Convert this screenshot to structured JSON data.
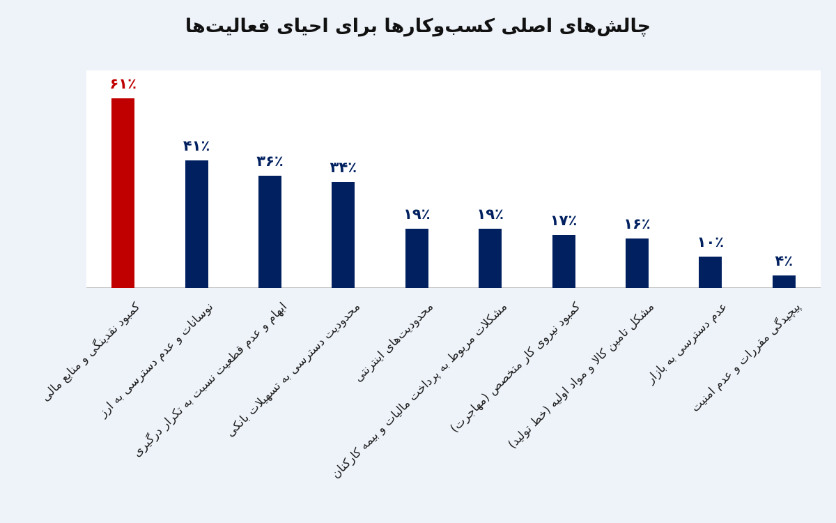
{
  "chart_data": {
    "type": "bar",
    "title": "چالش‌های اصلی کسب‌وکارها برای احیای فعالیت‌ها",
    "categories": [
      "کمبود نقدینگی و منابع مالی",
      "نوسانات و عدم دسترسی به ارز",
      "ابهام و عدم قطعیت نسبت به تکرار درگیری",
      "محدودیت دسترسی به تسهیلات بانکی",
      "محدودیت‌های اینترنتی",
      "مشکلات مربوط به پرداخت مالیات و بیمه کارکنان",
      "کمبود نیروی کار متخصص (مهاجرت)",
      "مشکل تامین کالا و مواد اولیه (خط تولید)",
      "عدم دسترسی به بازار",
      "پیچیدگی مقررات و عدم امنیت"
    ],
    "values": [
      61,
      41,
      36,
      34,
      19,
      19,
      17,
      16,
      10,
      4
    ],
    "data_labels": [
      "۶۱٪",
      "۴۱٪",
      "۳۶٪",
      "۳۴٪",
      "۱۹٪",
      "۱۹٪",
      "۱۷٪",
      "۱۶٪",
      "۱۰٪",
      "۴٪"
    ],
    "unit": "%",
    "ylim": [
      0,
      70
    ],
    "grid": false,
    "colors": {
      "highlight": "#c00000",
      "default": "#002060"
    },
    "highlight_index": 0
  }
}
